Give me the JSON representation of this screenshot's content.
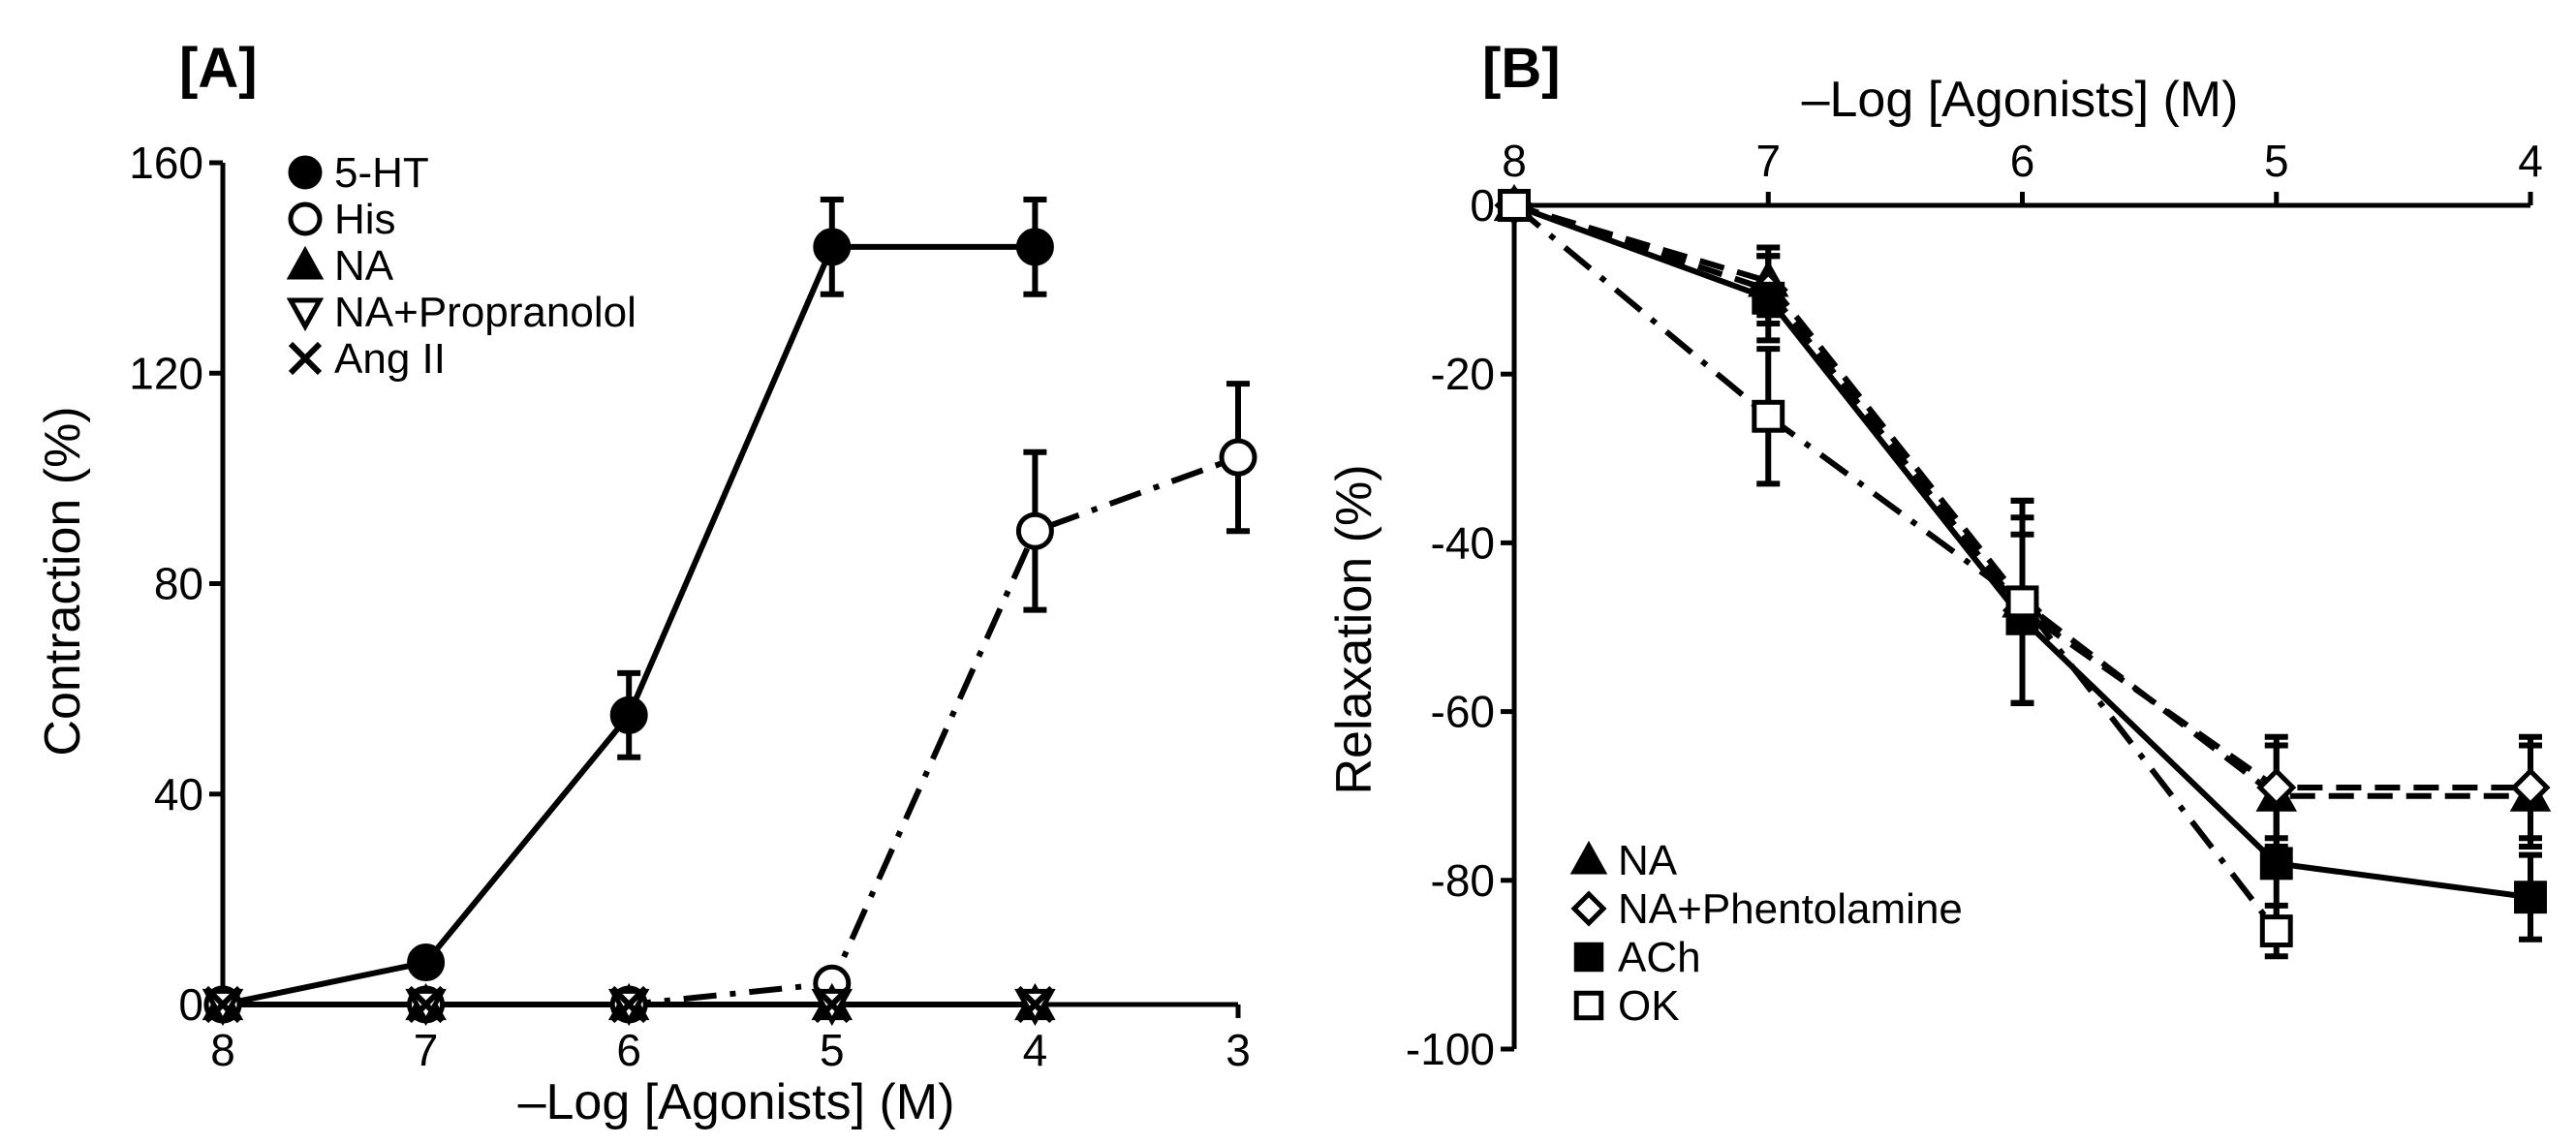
{
  "colors": {
    "ink": "#000000",
    "background": "#ffffff",
    "hollow_fill": "#ffffff"
  },
  "chart_data": [
    {
      "panel": "[A]",
      "type": "line",
      "title": "",
      "xlabel": "–Log [Agonists] (M)",
      "ylabel": "Contraction (%)",
      "x_ticks": [
        "8",
        "7",
        "6",
        "5",
        "4",
        "3"
      ],
      "y_ticks": [
        "0",
        "40",
        "80",
        "120",
        "160"
      ],
      "xlim": [
        8,
        3
      ],
      "ylim": [
        0,
        160
      ],
      "legend_position": "top-left",
      "series": [
        {
          "name": "5-HT",
          "marker": "filled-circle",
          "line": "solid",
          "x": [
            8,
            7,
            6,
            5,
            4
          ],
          "y": [
            0,
            8,
            55,
            144,
            144
          ],
          "err": [
            0,
            0,
            8,
            9,
            9
          ]
        },
        {
          "name": "His",
          "marker": "open-circle",
          "line": "dash-dot",
          "x": [
            8,
            7,
            6,
            5,
            4,
            3
          ],
          "y": [
            0,
            0,
            0,
            4,
            90,
            104
          ],
          "err": [
            0,
            0,
            0,
            0,
            15,
            14
          ]
        },
        {
          "name": "NA",
          "marker": "filled-triangle",
          "line": "solid",
          "x": [
            8,
            7,
            6,
            5,
            4
          ],
          "y": [
            0,
            0,
            0,
            0,
            0
          ],
          "err": [
            0,
            0,
            0,
            0,
            0
          ]
        },
        {
          "name": "NA+Propranolol",
          "marker": "open-triangle-down",
          "line": "solid",
          "x": [
            8,
            7,
            6,
            5,
            4
          ],
          "y": [
            0,
            0,
            0,
            0,
            0
          ],
          "err": [
            0,
            0,
            0,
            0,
            0
          ]
        },
        {
          "name": "Ang II",
          "marker": "cross",
          "line": "solid",
          "x": [
            8,
            7,
            6,
            5,
            4
          ],
          "y": [
            0,
            0,
            0,
            0,
            0
          ],
          "err": [
            0,
            0,
            0,
            0,
            0
          ]
        }
      ]
    },
    {
      "panel": "[B]",
      "type": "line",
      "title": "",
      "xlabel": "–Log [Agonists] (M)",
      "ylabel": "Relaxation (%)",
      "x_ticks": [
        "8",
        "7",
        "6",
        "5",
        "4"
      ],
      "y_ticks": [
        "0",
        "-20",
        "-40",
        "-60",
        "-80",
        "-100"
      ],
      "xlim": [
        8,
        4
      ],
      "ylim": [
        -100,
        0
      ],
      "legend_position": "bottom-left",
      "series": [
        {
          "name": "NA",
          "marker": "filled-triangle",
          "line": "dashed",
          "x": [
            8,
            7,
            6,
            5,
            4
          ],
          "y": [
            0,
            -9,
            -47,
            -70,
            -70
          ],
          "err": [
            0,
            4,
            12,
            6,
            6
          ]
        },
        {
          "name": "NA+Phentolamine",
          "marker": "open-diamond",
          "line": "dashed",
          "x": [
            8,
            7,
            6,
            5,
            4
          ],
          "y": [
            0,
            -10,
            -48,
            -69,
            -69
          ],
          "err": [
            0,
            4,
            11,
            6,
            6
          ]
        },
        {
          "name": "ACh",
          "marker": "filled-square",
          "line": "solid",
          "x": [
            8,
            7,
            6,
            5,
            4
          ],
          "y": [
            0,
            -11,
            -49,
            -78,
            -82
          ],
          "err": [
            0,
            5,
            10,
            8,
            5
          ]
        },
        {
          "name": "OK",
          "marker": "open-square",
          "line": "dash-dot",
          "x": [
            8,
            7,
            6,
            5
          ],
          "y": [
            0,
            -25,
            -47,
            -86
          ],
          "err": [
            0,
            8,
            12,
            3
          ]
        }
      ]
    }
  ]
}
